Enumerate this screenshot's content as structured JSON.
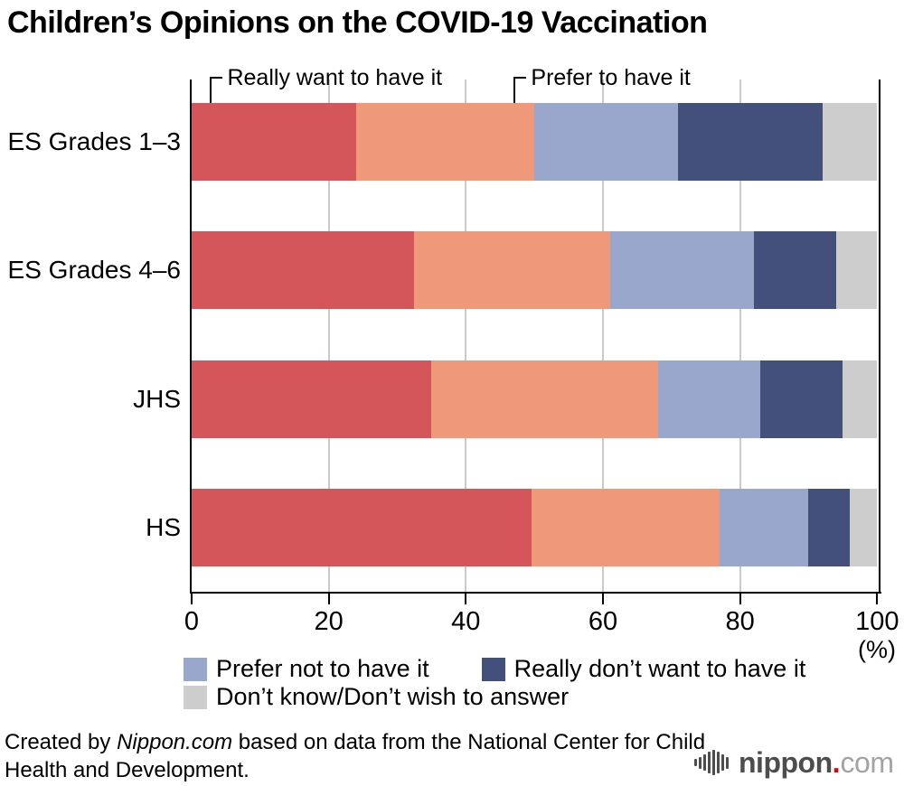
{
  "title": "Children’s Opinions on the COVID-19 Vaccination",
  "callouts": [
    {
      "label": "Really want to have it",
      "anchor_pct": 2.7
    },
    {
      "label": "Prefer to have it",
      "anchor_pct": 47
    }
  ],
  "chart_data": {
    "type": "bar",
    "orientation": "horizontal",
    "stacked": true,
    "title": "Children’s Opinions on the COVID-19 Vaccination",
    "categories": [
      "ES Grades 1–3",
      "ES Grades 4–6",
      "JHS",
      "HS"
    ],
    "series": [
      {
        "name": "Really want to have it",
        "color": "#d4565b",
        "values": [
          24,
          32.5,
          35,
          49.6
        ]
      },
      {
        "name": "Prefer to have it",
        "color": "#f0997a",
        "values": [
          26,
          28.5,
          33,
          27.4
        ]
      },
      {
        "name": "Prefer not to have it",
        "color": "#9aa7cd",
        "values": [
          21,
          21,
          15,
          13
        ]
      },
      {
        "name": "Really don’t want to have it",
        "color": "#42507b",
        "values": [
          21,
          12,
          12,
          6
        ]
      },
      {
        "name": "Don’t know/Don’t wish to answer",
        "color": "#cdcdcd",
        "values": [
          8,
          6,
          5,
          4
        ]
      }
    ],
    "xlim": [
      0,
      100
    ],
    "x_ticks": [
      0,
      20,
      40,
      60,
      80,
      100
    ],
    "x_unit": "(%)",
    "grid": true,
    "gridline_ticks": [
      20,
      40,
      60,
      80
    ],
    "legend_position": "bottom"
  },
  "legend": [
    {
      "label": "Prefer not to have it",
      "color": "#9aa7cd"
    },
    {
      "label": "Really don’t want to have it",
      "color": "#42507b"
    },
    {
      "label": "Don’t know/Don’t wish to answer",
      "color": "#cdcdcd"
    }
  ],
  "footer": {
    "credit_prefix": "Created by ",
    "credit_source": "Nippon.com",
    "credit_suffix": " based on data from the National Center for Child Health and Development.",
    "logo": {
      "icon": "soundwave-bars-icon",
      "name": "nippon",
      "dot": ".",
      "tld": "com",
      "dot_color": "#e60012"
    }
  }
}
